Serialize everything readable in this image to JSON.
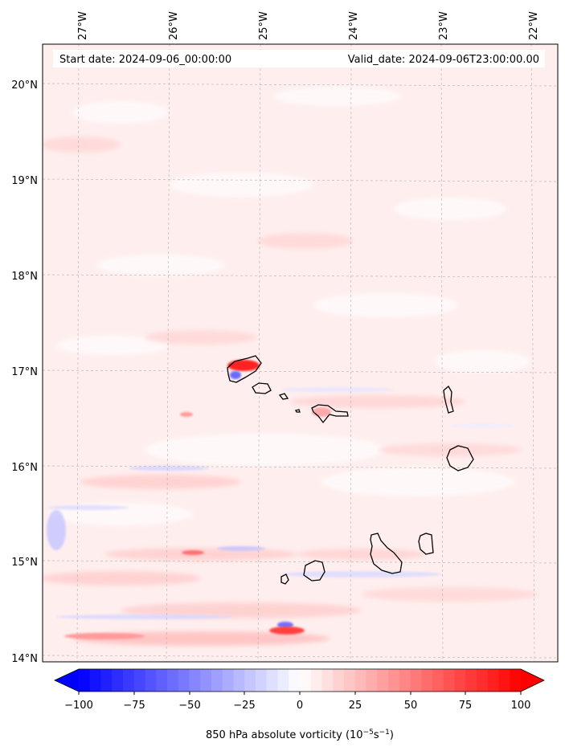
{
  "map": {
    "start_label": "Start date: 2024-09-06_00:00:00",
    "valid_label": "Valid_date: 2024-09-06T23:00:00.00",
    "lon_ticks": [
      "27°W",
      "26°W",
      "25°W",
      "24°W",
      "23°W",
      "22°W"
    ],
    "lat_ticks": [
      "20°N",
      "19°N",
      "18°N",
      "17°N",
      "16°N",
      "15°N",
      "14°N"
    ],
    "gridlines": true
  },
  "colorbar": {
    "ticks": [
      "−100",
      "−75",
      "−50",
      "−25",
      "0",
      "25",
      "50",
      "75",
      "100"
    ],
    "label_main": "850 hPa absolute vorticity (10",
    "label_exp1": "−5",
    "label_mid": "s",
    "label_exp2": "−1",
    "label_end": ")",
    "cmap": "bwr",
    "low_color": "#0000ff",
    "high_color": "#ff0000",
    "extend": "both"
  },
  "colors": {
    "background_field": "#ffeeee",
    "coastline": "#000000"
  }
}
